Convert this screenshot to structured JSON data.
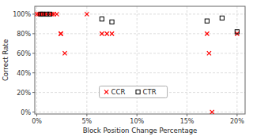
{
  "chart_data": {
    "type": "scatter",
    "xlabel": "Block Position Change Percentage",
    "ylabel": "Correct Rate",
    "series": [
      {
        "name": "CCR",
        "color": "red",
        "marker": "x",
        "x": [
          0.0,
          0.002,
          0.004,
          0.006,
          0.008,
          0.01,
          0.013,
          0.015,
          0.017,
          0.02,
          0.024,
          0.024,
          0.028,
          0.05,
          0.065,
          0.07,
          0.075,
          0.17,
          0.172,
          0.175,
          0.2
        ],
        "values": [
          1.0,
          1.0,
          1.0,
          1.0,
          1.0,
          1.0,
          1.0,
          1.0,
          1.0,
          1.0,
          0.8,
          0.8,
          0.6,
          1.0,
          0.8,
          0.8,
          0.8,
          0.8,
          0.6,
          0.0,
          0.8
        ]
      },
      {
        "name": "CTR",
        "color": "black",
        "marker": "square",
        "x": [
          0.004,
          0.006,
          0.01,
          0.013,
          0.065,
          0.075,
          0.17,
          0.185,
          0.2
        ],
        "values": [
          1.0,
          1.0,
          1.0,
          1.0,
          0.95,
          0.92,
          0.93,
          0.96,
          0.82
        ]
      }
    ],
    "xlim": [
      -0.002,
      0.208
    ],
    "ylim": [
      -0.02,
      1.08
    ],
    "xticks": [
      {
        "value": 0.0,
        "label": "0%"
      },
      {
        "value": 0.05,
        "label": "5%"
      },
      {
        "value": 0.1,
        "label": "10%"
      },
      {
        "value": 0.15,
        "label": "15%"
      },
      {
        "value": 0.2,
        "label": "20%"
      }
    ],
    "yticks": [
      {
        "value": 0.0,
        "label": "0%"
      },
      {
        "value": 0.2,
        "label": "20%"
      },
      {
        "value": 0.4,
        "label": "40%"
      },
      {
        "value": 0.6,
        "label": "60%"
      },
      {
        "value": 0.8,
        "label": "80%"
      },
      {
        "value": 1.0,
        "label": "100%"
      }
    ],
    "grid": true,
    "legend": "lower right"
  }
}
